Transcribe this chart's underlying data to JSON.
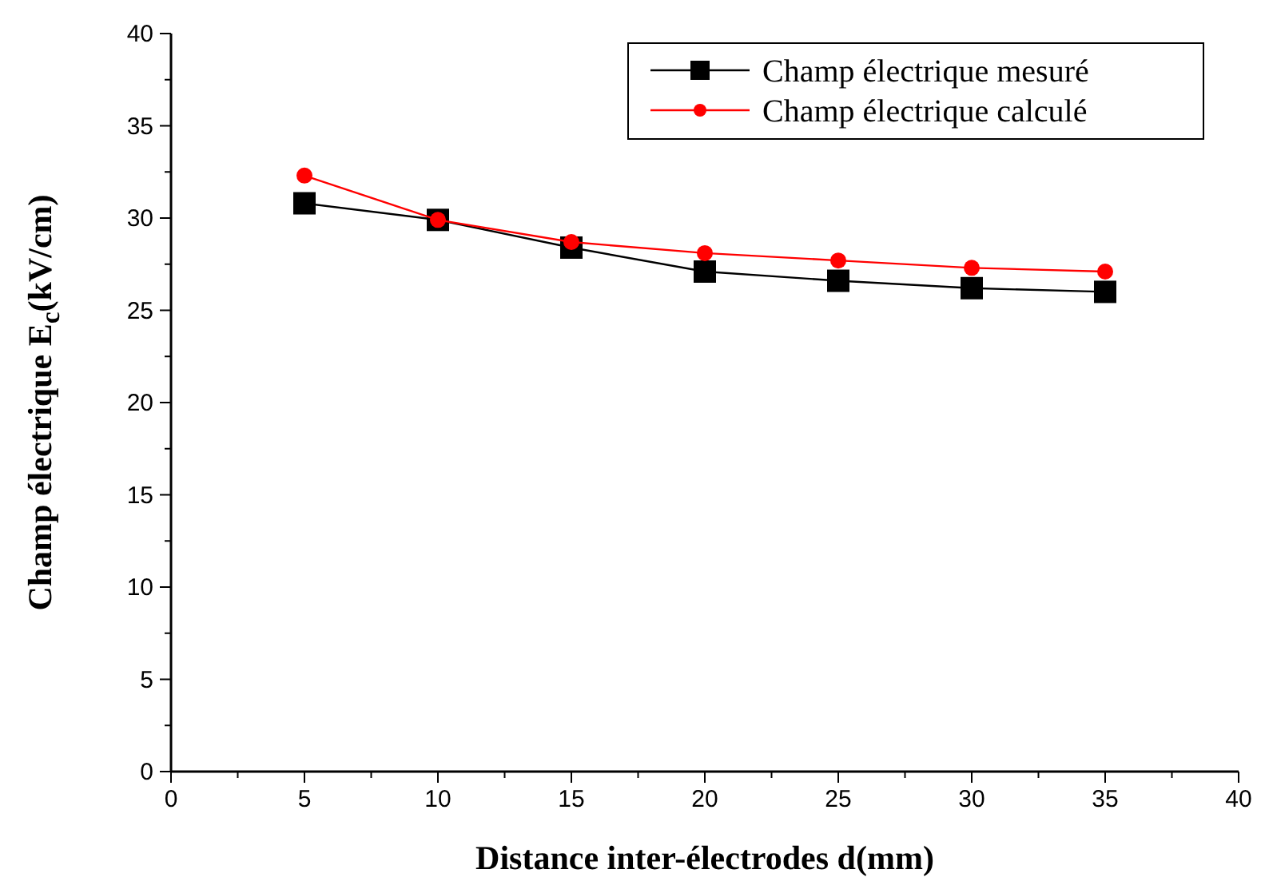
{
  "chart_data": {
    "type": "line",
    "xlabel": "Distance inter-électrodes d(mm)",
    "ylabel": "Champ électrique E$_{c}$(kV/cm)",
    "x": [
      5,
      10,
      15,
      20,
      25,
      30,
      35
    ],
    "series": [
      {
        "name": "Champ électrique mesuré",
        "color": "#000000",
        "marker": "square",
        "values": [
          30.8,
          29.9,
          28.4,
          27.1,
          26.6,
          26.2,
          26.0
        ]
      },
      {
        "name": "Champ électrique calculé",
        "color": "#ff0000",
        "marker": "circle",
        "values": [
          32.3,
          29.9,
          28.7,
          28.1,
          27.7,
          27.3,
          27.1
        ]
      }
    ],
    "xlim": [
      0,
      40
    ],
    "ylim": [
      0,
      40
    ],
    "xticks": [
      0,
      {
        "value": 2.5,
        "label": null
      },
      5,
      {
        "value": 7.5,
        "label": null
      },
      10,
      {
        "value": 12.5,
        "label": null
      },
      15,
      {
        "value": 17.5,
        "label": null
      },
      20,
      {
        "value": 22.5,
        "label": null
      },
      25,
      {
        "value": 27.5,
        "label": null
      },
      30,
      {
        "value": 32.5,
        "label": null
      },
      35,
      {
        "value": 37.5,
        "label": null
      },
      40
    ],
    "yticks": [
      0,
      {
        "value": 2.5,
        "label": null
      },
      5,
      {
        "value": 7.5,
        "label": null
      },
      10,
      {
        "value": 12.5,
        "label": null
      },
      15,
      {
        "value": 17.5,
        "label": null
      },
      20,
      {
        "value": 22.5,
        "label": null
      },
      25,
      {
        "value": 27.5,
        "label": null
      },
      30,
      {
        "value": 32.5,
        "label": null
      },
      35,
      {
        "value": 37.5,
        "label": null
      },
      40
    ],
    "grid": false,
    "legend": "top right",
    "line_style": "solid"
  }
}
